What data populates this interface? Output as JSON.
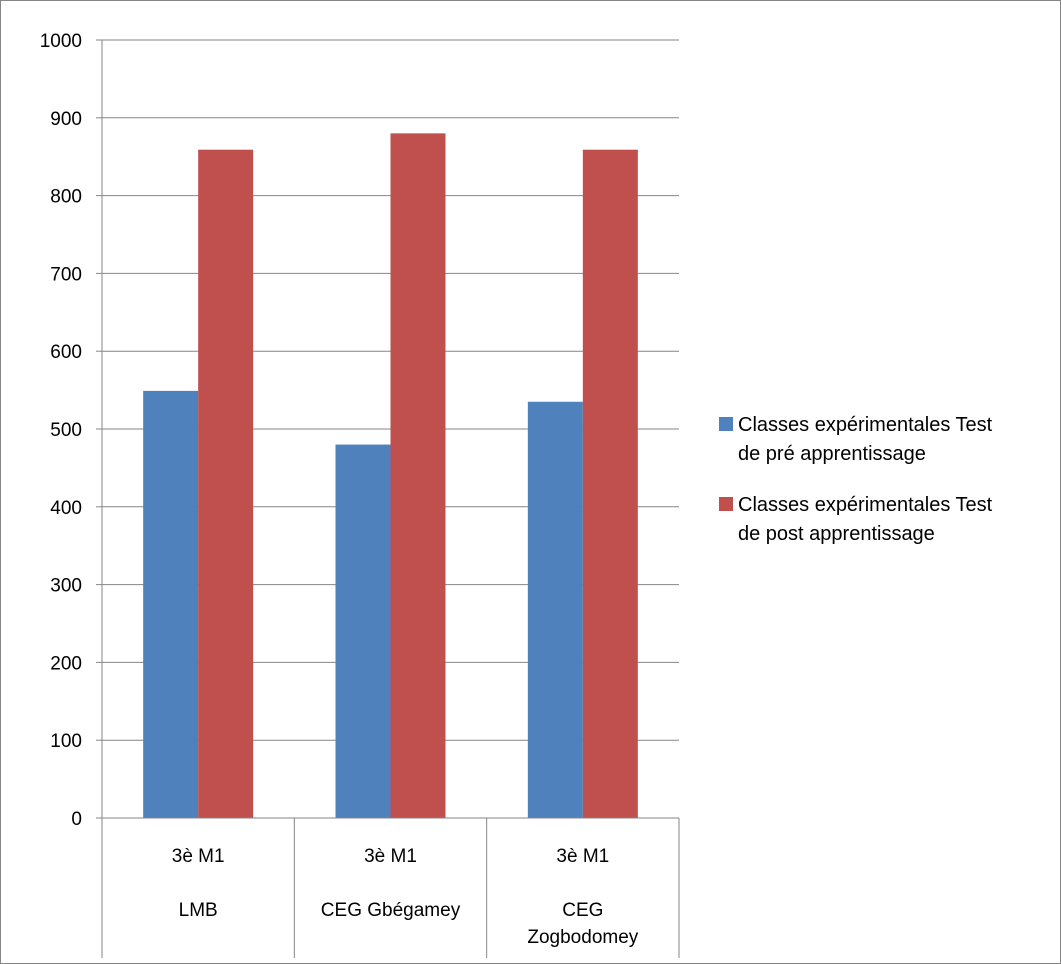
{
  "chart_data": {
    "type": "bar",
    "title": "",
    "xlabel": "",
    "ylabel": "",
    "ylim": [
      0,
      1000
    ],
    "yticks": [
      0,
      100,
      200,
      300,
      400,
      500,
      600,
      700,
      800,
      900,
      1000
    ],
    "grid": true,
    "legend_position": "right",
    "categories": [
      {
        "level1": "3è M1",
        "level2": [
          "LMB"
        ]
      },
      {
        "level1": "3è M1",
        "level2": [
          "CEG Gbégamey"
        ]
      },
      {
        "level1": "3è M1",
        "level2": [
          "CEG",
          "Zogbodomey"
        ]
      }
    ],
    "series": [
      {
        "name_lines": [
          "Classes expérimentales Test",
          "de pré apprentissage"
        ],
        "color": "#4f81bd",
        "values": [
          549,
          480,
          535
        ]
      },
      {
        "name_lines": [
          "Classes expérimentales Test",
          "de post apprentissage"
        ],
        "color": "#c0504d",
        "values": [
          859,
          880,
          859
        ]
      }
    ]
  }
}
